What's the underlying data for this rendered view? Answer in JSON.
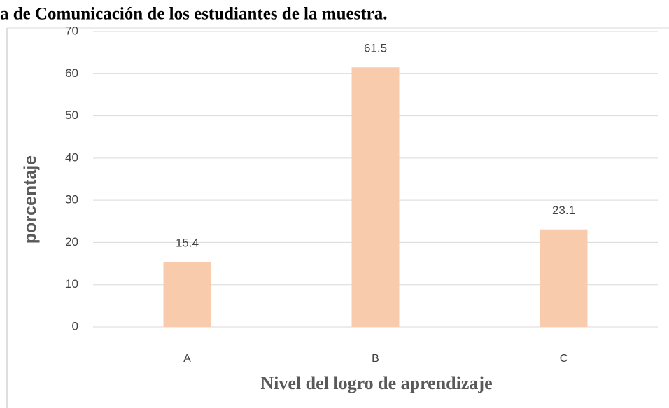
{
  "chart_data": {
    "type": "bar",
    "title": "a de Comunicación de los estudiantes de la muestra.",
    "xlabel": "Nivel del logro de aprendizaje",
    "ylabel": "porcentaje",
    "categories": [
      "A",
      "B",
      "C"
    ],
    "values": [
      15.4,
      61.5,
      23.1
    ],
    "color": "#f8cbad",
    "ylim": [
      0,
      70
    ],
    "yticks": [
      0,
      10,
      20,
      30,
      40,
      50,
      60,
      70
    ],
    "grid": true
  }
}
